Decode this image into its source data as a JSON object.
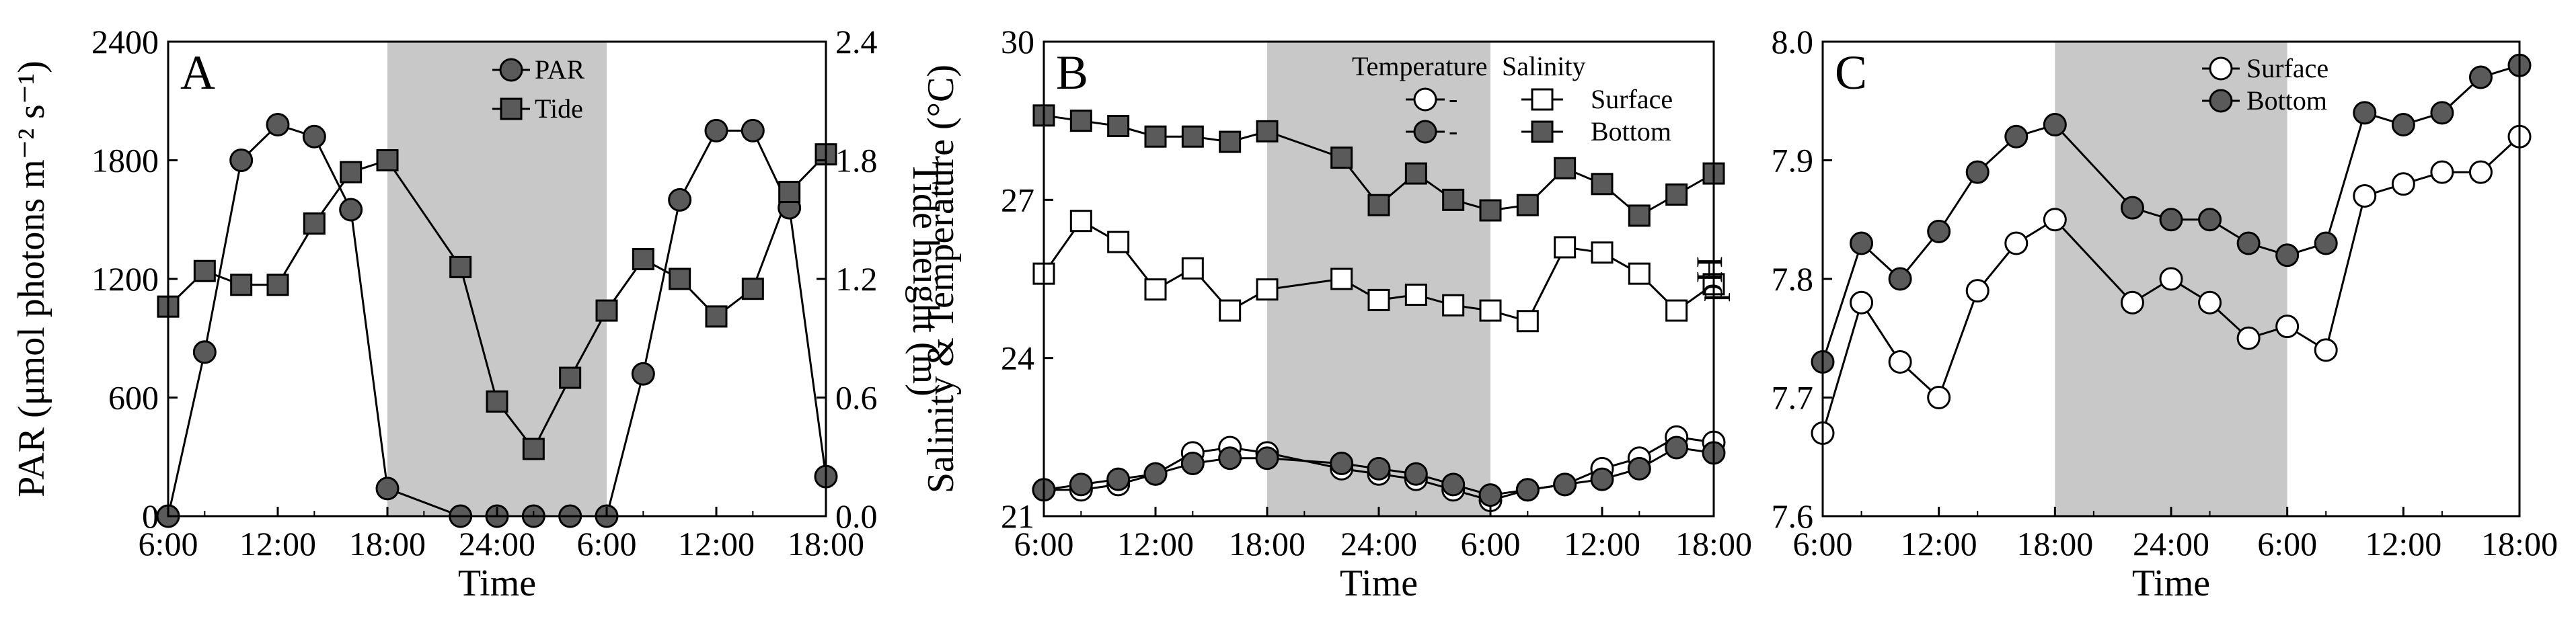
{
  "colors": {
    "night_shade": "#c8c8c8",
    "dark_marker": "#5a5a5a",
    "light_marker": "#ffffff",
    "line": "#000000"
  },
  "chart_data": [
    {
      "id": "A",
      "type": "line",
      "panel_label": "A",
      "xlabel": "Time",
      "ylabel": "PAR (μmol photons m⁻² s⁻¹)",
      "y2label": "Tide height (m)",
      "x_tick_labels": [
        "6:00",
        "12:00",
        "18:00",
        "24:00",
        "6:00",
        "12:00",
        "18:00"
      ],
      "x_tick_positions": [
        0,
        6,
        12,
        18,
        24,
        30,
        36
      ],
      "xlim": [
        0,
        36
      ],
      "ylim": [
        0,
        2400
      ],
      "y_ticks": [
        0,
        600,
        1200,
        1800,
        2400
      ],
      "y2lim": [
        0.0,
        2.4
      ],
      "y2_ticks": [
        0.0,
        0.6,
        1.2,
        1.8,
        2.4
      ],
      "shaded_x_range": [
        12,
        24
      ],
      "legend_position": "top-center",
      "series": [
        {
          "name": "PAR",
          "axis": "left",
          "marker": "circle",
          "fill": "dark",
          "x": [
            0,
            2,
            4,
            6,
            8,
            10,
            12,
            16,
            18,
            20,
            22,
            24,
            26,
            28,
            30,
            32,
            34,
            36
          ],
          "values": [
            0,
            830,
            1800,
            1980,
            1920,
            1550,
            140,
            0,
            0,
            0,
            0,
            0,
            720,
            1600,
            1950,
            1950,
            1560,
            200
          ]
        },
        {
          "name": "Tide",
          "axis": "right",
          "marker": "square",
          "fill": "dark",
          "x": [
            0,
            2,
            4,
            6,
            8,
            10,
            12,
            16,
            18,
            20,
            22,
            24,
            26,
            28,
            30,
            32,
            34,
            36
          ],
          "values": [
            1.06,
            1.24,
            1.17,
            1.17,
            1.48,
            1.74,
            1.8,
            1.26,
            0.58,
            0.34,
            0.7,
            1.04,
            1.3,
            1.2,
            1.01,
            1.15,
            1.64,
            1.83
          ]
        }
      ]
    },
    {
      "id": "B",
      "type": "line",
      "panel_label": "B",
      "xlabel": "Time",
      "ylabel": "Salinity & Temperature (°C)",
      "x_tick_labels": [
        "6:00",
        "12:00",
        "18:00",
        "24:00",
        "6:00",
        "12:00",
        "18:00"
      ],
      "x_tick_positions": [
        0,
        6,
        12,
        18,
        24,
        30,
        36
      ],
      "xlim": [
        0,
        36
      ],
      "ylim": [
        21,
        30
      ],
      "y_ticks": [
        21,
        24,
        27,
        30
      ],
      "shaded_x_range": [
        12,
        24
      ],
      "legend_position": "top-right",
      "legend_headers": [
        "Temperature",
        "Salinity"
      ],
      "legend_rows": [
        "Surface",
        "Bottom"
      ],
      "legend_dash": "-",
      "series": [
        {
          "name": "Surface Temperature",
          "marker": "circle",
          "fill": "light",
          "x": [
            0,
            2,
            4,
            6,
            8,
            10,
            12,
            16,
            18,
            20,
            22,
            24,
            26,
            28,
            30,
            32,
            34,
            36
          ],
          "values": [
            21.5,
            21.5,
            21.6,
            21.8,
            22.2,
            22.3,
            22.2,
            21.9,
            21.8,
            21.7,
            21.5,
            21.3,
            21.5,
            21.6,
            21.9,
            22.1,
            22.5,
            22.4
          ]
        },
        {
          "name": "Bottom Temperature",
          "marker": "circle",
          "fill": "dark",
          "x": [
            0,
            2,
            4,
            6,
            8,
            10,
            12,
            16,
            18,
            20,
            22,
            24,
            26,
            28,
            30,
            32,
            34,
            36
          ],
          "values": [
            21.5,
            21.6,
            21.7,
            21.8,
            22.0,
            22.1,
            22.1,
            22.0,
            21.9,
            21.8,
            21.6,
            21.4,
            21.5,
            21.6,
            21.7,
            21.9,
            22.3,
            22.2
          ]
        },
        {
          "name": "Surface Salinity",
          "marker": "square",
          "fill": "light",
          "x": [
            0,
            2,
            4,
            6,
            8,
            10,
            12,
            16,
            18,
            20,
            22,
            24,
            26,
            28,
            30,
            32,
            34,
            36
          ],
          "values": [
            25.6,
            26.6,
            26.2,
            25.3,
            25.7,
            24.9,
            25.3,
            25.5,
            25.1,
            25.2,
            25.0,
            24.9,
            24.7,
            26.1,
            26.0,
            25.6,
            24.9,
            25.4
          ]
        },
        {
          "name": "Bottom Salinity",
          "marker": "square",
          "fill": "dark",
          "x": [
            0,
            2,
            4,
            6,
            8,
            10,
            12,
            16,
            18,
            20,
            22,
            24,
            26,
            28,
            30,
            32,
            34,
            36
          ],
          "values": [
            28.6,
            28.5,
            28.4,
            28.2,
            28.2,
            28.1,
            28.3,
            27.8,
            26.9,
            27.5,
            27.0,
            26.8,
            26.9,
            27.6,
            27.3,
            26.7,
            27.1,
            27.5
          ]
        }
      ]
    },
    {
      "id": "C",
      "type": "line",
      "panel_label": "C",
      "xlabel": "Time",
      "ylabel": "pH",
      "x_tick_labels": [
        "6:00",
        "12:00",
        "18:00",
        "24:00",
        "6:00",
        "12:00",
        "18:00"
      ],
      "x_tick_positions": [
        0,
        6,
        12,
        18,
        24,
        30,
        36
      ],
      "xlim": [
        0,
        36
      ],
      "ylim": [
        7.6,
        8.0
      ],
      "y_ticks": [
        7.6,
        7.7,
        7.8,
        7.9,
        8.0
      ],
      "y_tick_labels": [
        "7.6",
        "7.7",
        "7.8",
        "7.9",
        "8.0"
      ],
      "shaded_x_range": [
        12,
        24
      ],
      "legend_position": "top-center",
      "series": [
        {
          "name": "Surface",
          "marker": "circle",
          "fill": "light",
          "x": [
            0,
            2,
            4,
            6,
            8,
            10,
            12,
            16,
            18,
            20,
            22,
            24,
            26,
            28,
            30,
            32,
            34,
            36
          ],
          "values": [
            7.67,
            7.78,
            7.73,
            7.7,
            7.79,
            7.83,
            7.85,
            7.78,
            7.8,
            7.78,
            7.75,
            7.76,
            7.74,
            7.87,
            7.88,
            7.89,
            7.89,
            7.92
          ]
        },
        {
          "name": "Bottom",
          "marker": "circle",
          "fill": "dark",
          "x": [
            0,
            2,
            4,
            6,
            8,
            10,
            12,
            16,
            18,
            20,
            22,
            24,
            26,
            28,
            30,
            32,
            34,
            36
          ],
          "values": [
            7.73,
            7.83,
            7.8,
            7.84,
            7.89,
            7.92,
            7.93,
            7.86,
            7.85,
            7.85,
            7.83,
            7.82,
            7.83,
            7.94,
            7.93,
            7.94,
            7.97,
            7.98
          ]
        }
      ]
    }
  ]
}
